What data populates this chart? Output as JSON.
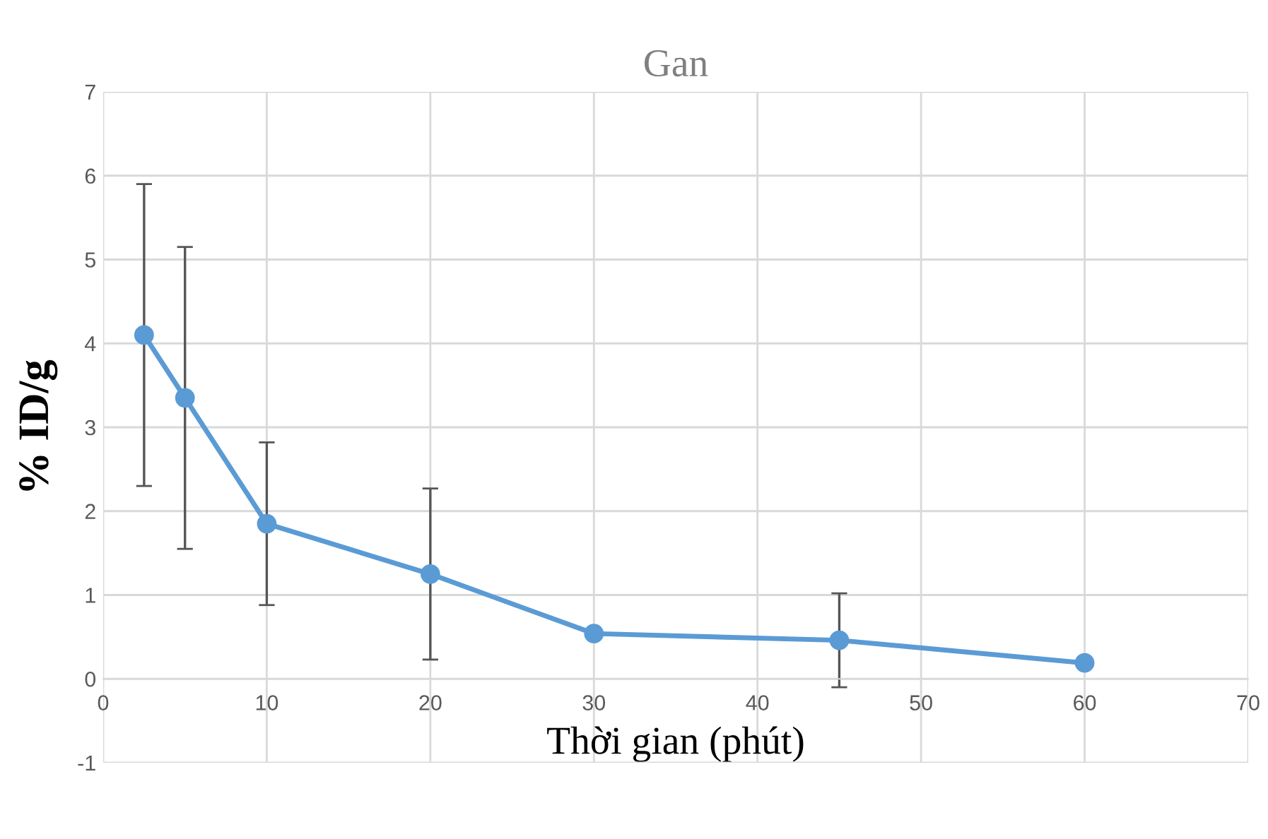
{
  "chart_data": {
    "type": "line",
    "title": "Gan",
    "xlabel": "Thời gian (phút)",
    "ylabel": "% ID/g",
    "x": [
      2.5,
      5,
      10,
      20,
      30,
      45,
      60
    ],
    "series": [
      {
        "color": "#5b9bd5",
        "values": [
          4.1,
          3.35,
          1.85,
          1.25,
          0.54,
          0.46,
          0.19
        ],
        "errors": [
          1.8,
          1.8,
          0.97,
          1.02,
          null,
          0.56,
          null
        ]
      }
    ],
    "xlim": [
      0,
      70
    ],
    "xticks": [
      0,
      10,
      20,
      30,
      40,
      50,
      60,
      70
    ],
    "ylim": [
      -1,
      7
    ],
    "yticks": [
      -1,
      0,
      1,
      2,
      3,
      4,
      5,
      6,
      7
    ],
    "grid": true,
    "marker": "circle",
    "line_style": "solid"
  }
}
